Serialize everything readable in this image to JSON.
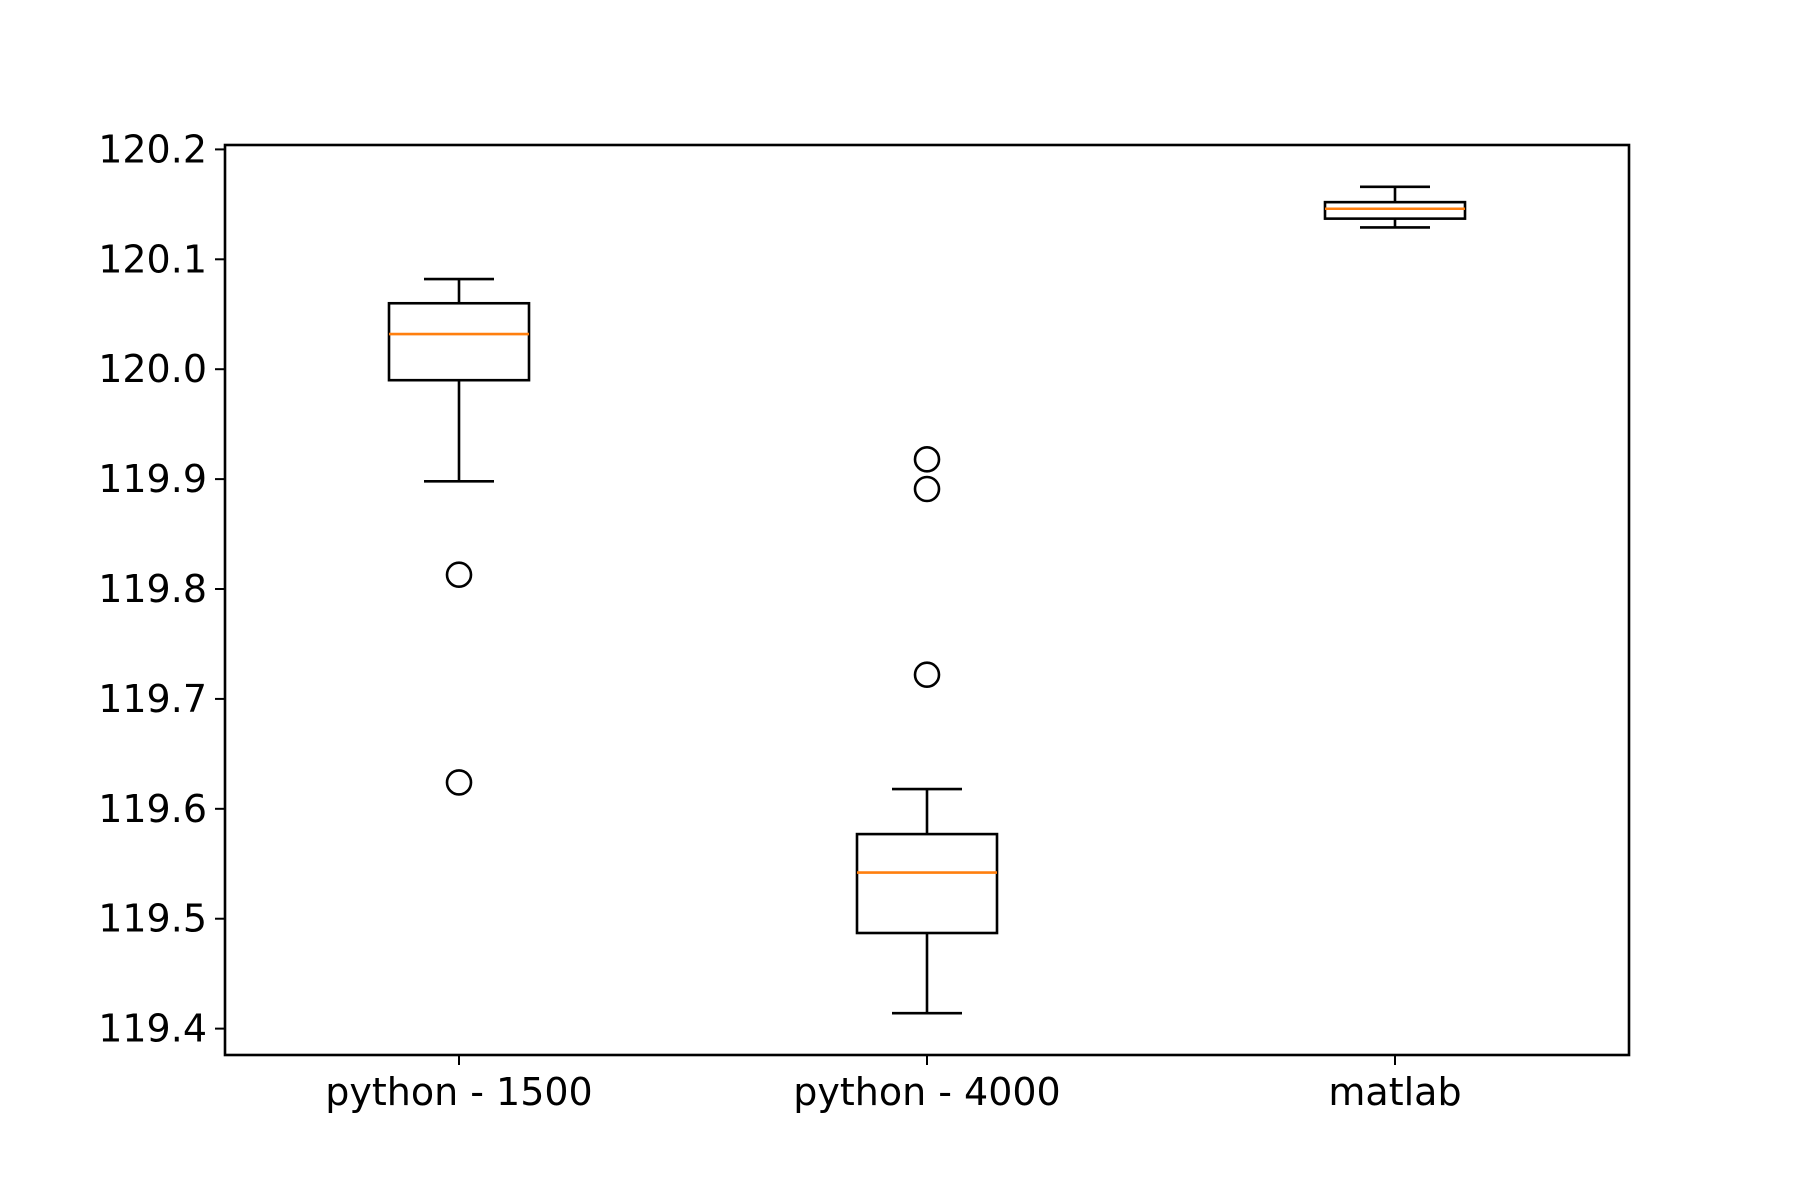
{
  "chart_data": {
    "type": "boxplot",
    "title": "",
    "xlabel": "",
    "ylabel": "",
    "categories": [
      "python - 1500",
      "python - 4000",
      "matlab"
    ],
    "boxes": [
      {
        "category": "python - 1500",
        "whisker_low": 119.898,
        "q1": 119.99,
        "median": 120.032,
        "q3": 120.06,
        "whisker_high": 120.082,
        "outliers": [
          119.813,
          119.624
        ]
      },
      {
        "category": "python - 4000",
        "whisker_low": 119.414,
        "q1": 119.487,
        "median": 119.542,
        "q3": 119.577,
        "whisker_high": 119.618,
        "outliers": [
          119.918,
          119.891,
          119.722
        ]
      },
      {
        "category": "matlab",
        "whisker_low": 120.129,
        "q1": 120.137,
        "median": 120.146,
        "q3": 120.152,
        "whisker_high": 120.166,
        "outliers": []
      }
    ],
    "ylim": [
      119.376,
      120.204
    ],
    "yticks": [
      "119.4",
      "119.5",
      "119.6",
      "119.7",
      "119.8",
      "119.9",
      "120.0",
      "120.1",
      "120.2"
    ],
    "grid": false,
    "legend": "none",
    "colors": {
      "box": "#000000",
      "median": "#ff7f0e",
      "outlier": "#000000"
    }
  }
}
